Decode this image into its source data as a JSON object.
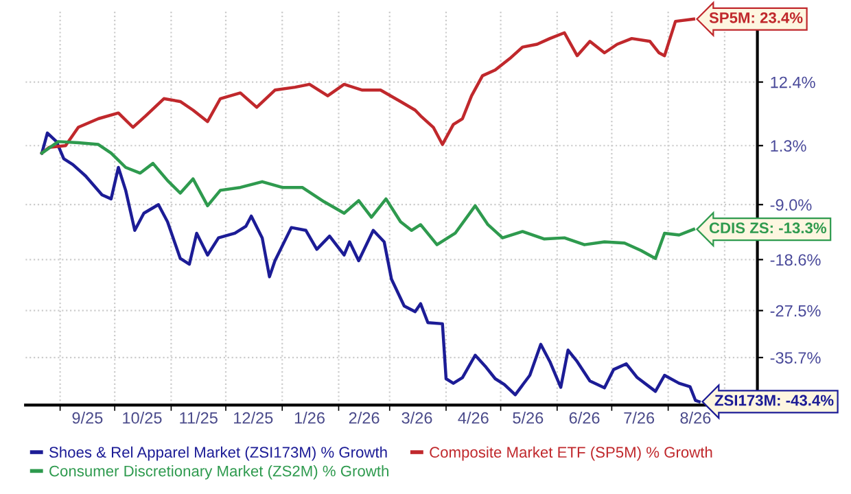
{
  "chart_data": {
    "type": "line",
    "series": [
      {
        "name": "Shoes & Rel Apparel Market (ZSI173M) % Growth",
        "color": "#1c1c96",
        "x": [
          "2025-08-22",
          "2025-08-25",
          "2025-08-30",
          "2025-09-03",
          "2025-09-08",
          "2025-09-15",
          "2025-09-24",
          "2025-09-29",
          "2025-10-03",
          "2025-10-07",
          "2025-10-12",
          "2025-10-17",
          "2025-10-25",
          "2025-10-30",
          "2025-11-06",
          "2025-11-11",
          "2025-11-15",
          "2025-11-21",
          "2025-11-27",
          "2025-12-06",
          "2025-12-12",
          "2025-12-15",
          "2025-12-21",
          "2025-12-25",
          "2025-12-28",
          "2026-01-06",
          "2026-01-14",
          "2026-01-20",
          "2026-01-27",
          "2026-02-04",
          "2026-02-07",
          "2026-02-12",
          "2026-02-20",
          "2026-02-26",
          "2026-03-02",
          "2026-03-09",
          "2026-03-15",
          "2026-03-18",
          "2026-03-22",
          "2026-03-30",
          "2026-04-01",
          "2026-04-05",
          "2026-04-10",
          "2026-04-17",
          "2026-04-23",
          "2026-04-28",
          "2026-05-03",
          "2026-05-09",
          "2026-05-17",
          "2026-05-23",
          "2026-05-28",
          "2026-06-03",
          "2026-06-07",
          "2026-06-12",
          "2026-06-19",
          "2026-06-27",
          "2026-07-02",
          "2026-07-09",
          "2026-07-15",
          "2026-07-25",
          "2026-07-30",
          "2026-08-07",
          "2026-08-13",
          "2026-08-16",
          "2026-08-18"
        ],
        "values": [
          0,
          3.5,
          2,
          -1,
          -2,
          -4,
          -7.3,
          -8,
          -2.5,
          -6.5,
          -13.5,
          -10.5,
          -9,
          -12,
          -18.4,
          -19.4,
          -14,
          -17.8,
          -14.8,
          -14,
          -12.8,
          -11,
          -14.8,
          -21.6,
          -18.8,
          -13,
          -13.5,
          -16.8,
          -14.5,
          -17.8,
          -15.5,
          -18.8,
          -13.5,
          -15.5,
          -22,
          -26.7,
          -27.7,
          -26.3,
          -29.6,
          -29.8,
          -39.4,
          -40.2,
          -39.2,
          -35.3,
          -37.4,
          -39.4,
          -40.4,
          -42.2,
          -38.8,
          -33.4,
          -36.4,
          -40.9,
          -34.4,
          -36.4,
          -39.8,
          -41,
          -37.8,
          -36.8,
          -39.2,
          -41.6,
          -38.8,
          -40.2,
          -40.8,
          -43.2,
          -43.4
        ]
      },
      {
        "name": "Composite Market ETF (SP5M) % Growth",
        "color": "#c0282c",
        "x": [
          "2025-08-22",
          "2025-08-26",
          "2025-09-04",
          "2025-09-11",
          "2025-09-22",
          "2025-10-03",
          "2025-10-11",
          "2025-10-18",
          "2025-10-28",
          "2025-11-06",
          "2025-11-13",
          "2025-11-21",
          "2025-11-28",
          "2025-12-09",
          "2025-12-18",
          "2025-12-28",
          "2026-01-08",
          "2026-01-16",
          "2026-01-26",
          "2026-02-04",
          "2026-02-14",
          "2026-02-24",
          "2026-03-07",
          "2026-03-15",
          "2026-03-18",
          "2026-03-25",
          "2026-03-30",
          "2026-04-05",
          "2026-04-10",
          "2026-04-15",
          "2026-04-21",
          "2026-04-28",
          "2026-05-06",
          "2026-05-13",
          "2026-05-21",
          "2026-05-28",
          "2026-06-05",
          "2026-06-12",
          "2026-06-19",
          "2026-06-27",
          "2026-07-04",
          "2026-07-12",
          "2026-07-22",
          "2026-07-27",
          "2026-07-30",
          "2026-08-05",
          "2026-08-15"
        ],
        "values": [
          0,
          1,
          1.3,
          4.5,
          6,
          7,
          4.5,
          6.5,
          9.5,
          9,
          7.5,
          5.5,
          9.5,
          10.5,
          8,
          11,
          11.5,
          12,
          10,
          12,
          11,
          11,
          9,
          7.5,
          6.5,
          4.5,
          1.5,
          5,
          6,
          10,
          13.5,
          14.5,
          16.5,
          18.5,
          19,
          20,
          21,
          17,
          19.5,
          17.5,
          19,
          20,
          19.5,
          17.5,
          17,
          23,
          23.4
        ]
      },
      {
        "name": "Consumer Discretionary Market (ZS2M) % Growth",
        "color": "#2e9a4e",
        "x": [
          "2025-08-22",
          "2025-08-31",
          "2025-09-11",
          "2025-09-22",
          "2025-09-29",
          "2025-10-07",
          "2025-10-15",
          "2025-10-22",
          "2025-10-30",
          "2025-11-06",
          "2025-11-13",
          "2025-11-21",
          "2025-11-28",
          "2025-12-09",
          "2025-12-21",
          "2026-01-01",
          "2026-01-12",
          "2026-01-24",
          "2026-02-04",
          "2026-02-12",
          "2026-02-19",
          "2026-02-27",
          "2026-03-07",
          "2026-03-13",
          "2026-03-18",
          "2026-03-27",
          "2026-04-06",
          "2026-04-17",
          "2026-04-24",
          "2026-05-02",
          "2026-05-13",
          "2026-05-25",
          "2026-06-05",
          "2026-06-16",
          "2026-06-27",
          "2026-07-08",
          "2026-07-17",
          "2026-07-25",
          "2026-07-30",
          "2026-08-07",
          "2026-08-15"
        ],
        "values": [
          0,
          2,
          1.8,
          1.5,
          0,
          -2.5,
          -3.5,
          -1.8,
          -4.8,
          -7,
          -4.5,
          -9.2,
          -6.5,
          -6,
          -5,
          -6,
          -6,
          -8.5,
          -10.5,
          -8.3,
          -11.2,
          -8,
          -12,
          -13.5,
          -12.5,
          -16,
          -14,
          -9.2,
          -12.5,
          -14.8,
          -13.7,
          -15,
          -14.8,
          -16,
          -15.5,
          -15.7,
          -17,
          -18.4,
          -14,
          -14.3,
          -13.3
        ]
      }
    ],
    "xlim": [
      "2025-08-13",
      "2026-09-19"
    ],
    "xticks": [
      {
        "value": "2025-09-01",
        "label": null
      },
      {
        "value": "2025-09-16",
        "label": "9/25"
      },
      {
        "value": "2025-10-01",
        "label": null
      },
      {
        "value": "2025-10-16",
        "label": "10/25"
      },
      {
        "value": "2025-11-01",
        "label": null
      },
      {
        "value": "2025-11-16",
        "label": "11/25"
      },
      {
        "value": "2025-12-01",
        "label": null
      },
      {
        "value": "2025-12-16",
        "label": "12/25"
      },
      {
        "value": "2026-01-01",
        "label": null
      },
      {
        "value": "2026-01-16",
        "label": "1/26"
      },
      {
        "value": "2026-02-01",
        "label": null
      },
      {
        "value": "2026-02-15",
        "label": "2/26"
      },
      {
        "value": "2026-03-01",
        "label": null
      },
      {
        "value": "2026-03-16",
        "label": "3/26"
      },
      {
        "value": "2026-04-01",
        "label": null
      },
      {
        "value": "2026-04-16",
        "label": "4/26"
      },
      {
        "value": "2026-05-01",
        "label": null
      },
      {
        "value": "2026-05-16",
        "label": "5/26"
      },
      {
        "value": "2026-06-01",
        "label": null
      },
      {
        "value": "2026-06-16",
        "label": "6/26"
      },
      {
        "value": "2026-07-01",
        "label": null
      },
      {
        "value": "2026-07-16",
        "label": "7/26"
      },
      {
        "value": "2026-08-01",
        "label": null
      },
      {
        "value": "2026-08-16",
        "label": "8/26"
      },
      {
        "value": "2026-09-01",
        "label": null
      }
    ],
    "ylim": [
      -44,
      25
    ],
    "yticks": [
      {
        "value": -35.7,
        "label": "-35.7%"
      },
      {
        "value": -27.5,
        "label": "-27.5%"
      },
      {
        "value": -18.6,
        "label": "-18.6%"
      },
      {
        "value": -9.0,
        "label": "-9.0%"
      },
      {
        "value": 1.3,
        "label": "1.3%"
      },
      {
        "value": 12.4,
        "label": "12.4%"
      }
    ],
    "annotations": [
      {
        "text": "ZSI173M: -43.4%",
        "x": "2026-08-18",
        "y": -43.4
      },
      {
        "text": "SP5M: 23.4%",
        "x": "2026-08-15",
        "y": 23.4
      },
      {
        "text": "CDIS ZS: -13.3%",
        "x": "2026-08-15",
        "y": -13.3
      }
    ],
    "grid": true,
    "legend": "bottom",
    "marker": "none",
    "line_style": "solid"
  }
}
